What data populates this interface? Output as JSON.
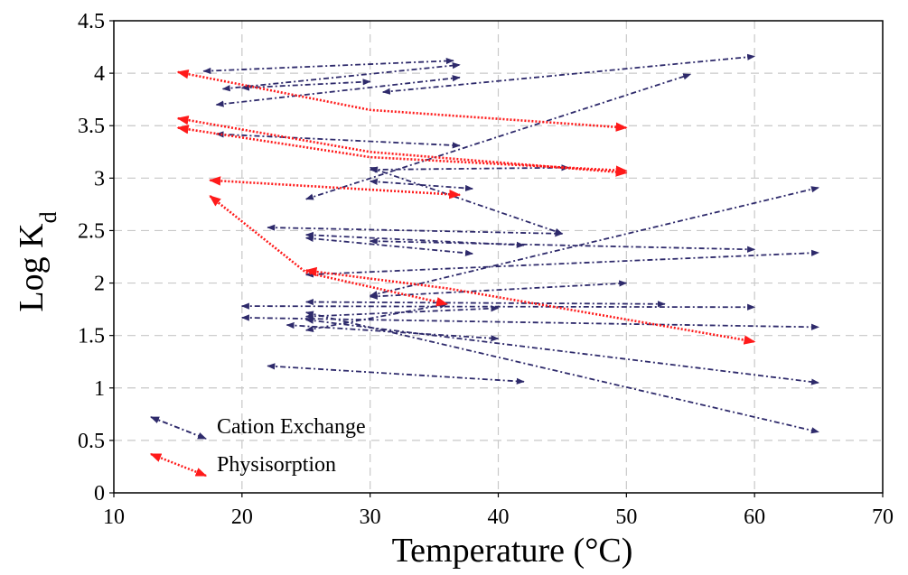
{
  "chart_data": {
    "type": "scatter",
    "xlabel": "Temperature (°C)",
    "ylabel_main": "Log K",
    "ylabel_sub": "d",
    "xlim": [
      10,
      70
    ],
    "ylim": [
      0,
      4.5
    ],
    "x_ticks": [
      "10",
      "20",
      "30",
      "40",
      "50",
      "60",
      "70"
    ],
    "y_ticks": [
      "0",
      "0.5",
      "1",
      "1.5",
      "2",
      "2.5",
      "3",
      "3.5",
      "4",
      "4.5"
    ],
    "grid": "dashed vertical and horizontal",
    "legend_position": "bottom-left",
    "series": [
      {
        "name": "Cation Exchange",
        "color": "#2e2a6b",
        "style": "dash-dot double-headed arrows",
        "segments": [
          [
            [
              17,
              4.02
            ],
            [
              36.5,
              4.12
            ]
          ],
          [
            [
              18.5,
              3.85
            ],
            [
              37,
              4.08
            ]
          ],
          [
            [
              18,
              3.7
            ],
            [
              37,
              3.96
            ]
          ],
          [
            [
              20,
              3.86
            ],
            [
              30,
              3.92
            ]
          ],
          [
            [
              31,
              3.82
            ],
            [
              60,
              4.16
            ]
          ],
          [
            [
              25,
              2.8
            ],
            [
              55,
              3.99
            ]
          ],
          [
            [
              18,
              3.42
            ],
            [
              37,
              3.31
            ]
          ],
          [
            [
              30,
              3.08
            ],
            [
              45.5,
              3.1
            ]
          ],
          [
            [
              30,
              2.97
            ],
            [
              38,
              2.9
            ]
          ],
          [
            [
              30,
              3.1
            ],
            [
              45,
              2.47
            ]
          ],
          [
            [
              22,
              2.53
            ],
            [
              45,
              2.47
            ]
          ],
          [
            [
              25,
              2.46
            ],
            [
              42,
              2.36
            ]
          ],
          [
            [
              25,
              2.43
            ],
            [
              38,
              2.28
            ]
          ],
          [
            [
              30,
              2.4
            ],
            [
              60,
              2.32
            ]
          ],
          [
            [
              25,
              2.08
            ],
            [
              65,
              2.29
            ]
          ],
          [
            [
              30,
              1.88
            ],
            [
              65,
              2.91
            ]
          ],
          [
            [
              30,
              1.87
            ],
            [
              50,
              2.0
            ]
          ],
          [
            [
              20,
              1.78
            ],
            [
              60,
              1.77
            ]
          ],
          [
            [
              25,
              1.82
            ],
            [
              53,
              1.8
            ]
          ],
          [
            [
              25,
              1.68
            ],
            [
              40,
              1.76
            ]
          ],
          [
            [
              20,
              1.67
            ],
            [
              65,
              1.58
            ]
          ],
          [
            [
              23.5,
              1.6
            ],
            [
              40,
              1.47
            ]
          ],
          [
            [
              25,
              1.55
            ],
            [
              36,
              1.8
            ]
          ],
          [
            [
              25,
              1.65
            ],
            [
              65,
              1.05
            ]
          ],
          [
            [
              25,
              1.72
            ],
            [
              65,
              0.58
            ]
          ],
          [
            [
              22,
              1.21
            ],
            [
              42,
              1.06
            ]
          ]
        ]
      },
      {
        "name": "Physisorption",
        "color": "#ff1a1a",
        "style": "dotted double-headed arrows",
        "segments": [
          [
            [
              15,
              4.01
            ],
            [
              30,
              3.65
            ],
            [
              50,
              3.48
            ]
          ],
          [
            [
              15,
              3.57
            ],
            [
              30,
              3.25
            ],
            [
              50,
              3.05
            ]
          ],
          [
            [
              15,
              3.48
            ],
            [
              30,
              3.2
            ],
            [
              50,
              3.07
            ]
          ],
          [
            [
              17.5,
              2.98
            ],
            [
              37,
              2.84
            ]
          ],
          [
            [
              17.5,
              2.83
            ],
            [
              25,
              2.1
            ],
            [
              36,
              1.8
            ]
          ],
          [
            [
              25,
              2.12
            ],
            [
              36,
              1.95
            ],
            [
              60,
              1.44
            ]
          ]
        ]
      }
    ]
  }
}
